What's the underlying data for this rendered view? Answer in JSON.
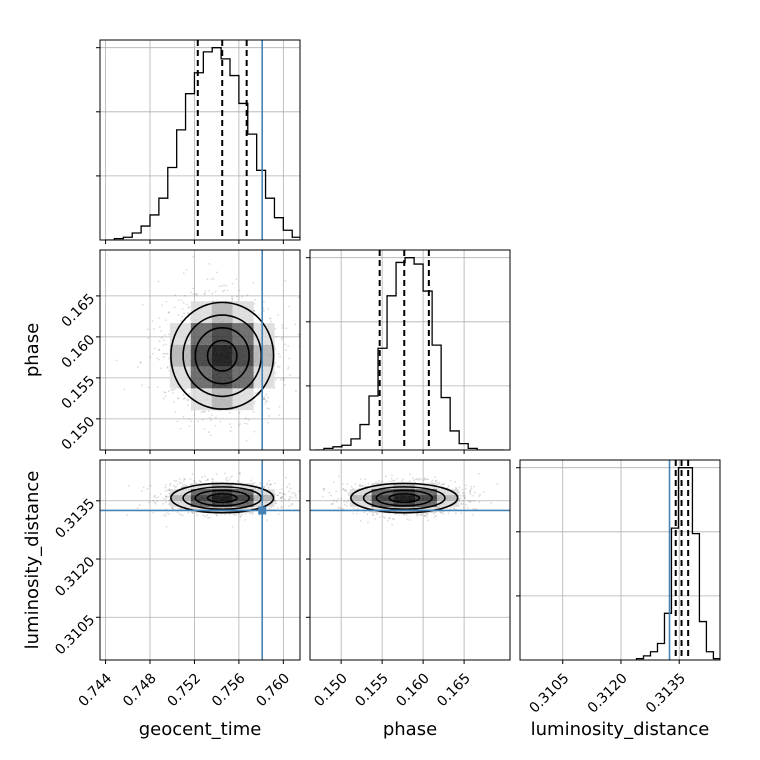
{
  "chart_data": {
    "type": "corner",
    "parameters": [
      "geocent_time",
      "phase",
      "luminosity_distance"
    ],
    "truths": {
      "geocent_time": 0.7581,
      "phase": null,
      "luminosity_distance": 0.31325
    },
    "truth_color": "#4682b4",
    "grid": true,
    "axes": {
      "geocent_time": {
        "range": [
          0.7435,
          0.7615
        ],
        "ticks": [
          0.744,
          0.748,
          0.752,
          0.756,
          0.76
        ],
        "tick_labels": [
          "0.744",
          "0.748",
          "0.752",
          "0.756",
          "0.760"
        ]
      },
      "phase": {
        "range": [
          0.1462,
          0.1706
        ],
        "ticks": [
          0.15,
          0.155,
          0.16,
          0.165
        ],
        "tick_labels": [
          "0.150",
          "0.155",
          "0.160",
          "0.165"
        ]
      },
      "luminosity_distance": {
        "range": [
          0.3094,
          0.31455
        ],
        "ticks": [
          0.3105,
          0.312,
          0.3135
        ],
        "tick_labels": [
          "0.3105",
          "0.3120",
          "0.3135"
        ]
      }
    },
    "histograms": [
      {
        "parameter": "geocent_time",
        "bin_edges": [
          0.744,
          0.7448,
          0.7456,
          0.7464,
          0.7472,
          0.748,
          0.7488,
          0.7496,
          0.7504,
          0.7512,
          0.752,
          0.7528,
          0.7536,
          0.7544,
          0.7552,
          0.756,
          0.7568,
          0.7576,
          0.7584,
          0.7592,
          0.76,
          0.7608,
          0.7616
        ],
        "counts": [
          0,
          1,
          2,
          5,
          10,
          18,
          30,
          52,
          79,
          105,
          120,
          135,
          138,
          130,
          118,
          98,
          76,
          50,
          30,
          16,
          7,
          2
        ],
        "quantiles": [
          0.7523,
          0.7545,
          0.7567
        ]
      },
      {
        "parameter": "phase",
        "bin_edges": [
          0.1468,
          0.1479,
          0.149,
          0.1501,
          0.1512,
          0.1523,
          0.1534,
          0.1545,
          0.1556,
          0.1567,
          0.1578,
          0.1589,
          0.16,
          0.1611,
          0.1622,
          0.1633,
          0.1644,
          0.1655,
          0.1666,
          0.1677,
          0.1688,
          0.1699
        ],
        "counts": [
          0,
          1,
          2,
          3,
          7,
          16,
          34,
          64,
          97,
          118,
          121,
          117,
          100,
          66,
          33,
          12,
          4,
          1,
          0,
          0,
          0
        ],
        "quantiles": [
          0.1547,
          0.1577,
          0.1607
        ]
      },
      {
        "parameter": "luminosity_distance",
        "bin_edges": [
          0.3124,
          0.31258,
          0.31276,
          0.31294,
          0.31312,
          0.3133,
          0.31348,
          0.31366,
          0.31384,
          0.31402,
          0.3142,
          0.31438,
          0.31456
        ],
        "counts": [
          1,
          3,
          6,
          12,
          34,
          96,
          140,
          140,
          92,
          28,
          6,
          1
        ],
        "quantiles": [
          0.31341,
          0.31356,
          0.31373
        ]
      }
    ],
    "joint": [
      {
        "x": "geocent_time",
        "y": "phase",
        "x_mean": 0.7545,
        "y_mean": 0.1577,
        "x_sd": 0.0022,
        "y_sd": 0.0031,
        "levels": 4
      },
      {
        "x": "geocent_time",
        "y": "luminosity_distance",
        "x_mean": 0.7545,
        "y_mean": 0.31357,
        "x_sd": 0.0022,
        "y_sd": 0.00018,
        "levels": 4
      },
      {
        "x": "phase",
        "y": "luminosity_distance",
        "x_mean": 0.1577,
        "y_mean": 0.31357,
        "x_sd": 0.0031,
        "y_sd": 0.00018,
        "levels": 4
      }
    ],
    "xlabels": [
      "geocent_time",
      "phase",
      "luminosity_distance"
    ],
    "ylabels": [
      "",
      "phase",
      "luminosity_distance"
    ]
  }
}
